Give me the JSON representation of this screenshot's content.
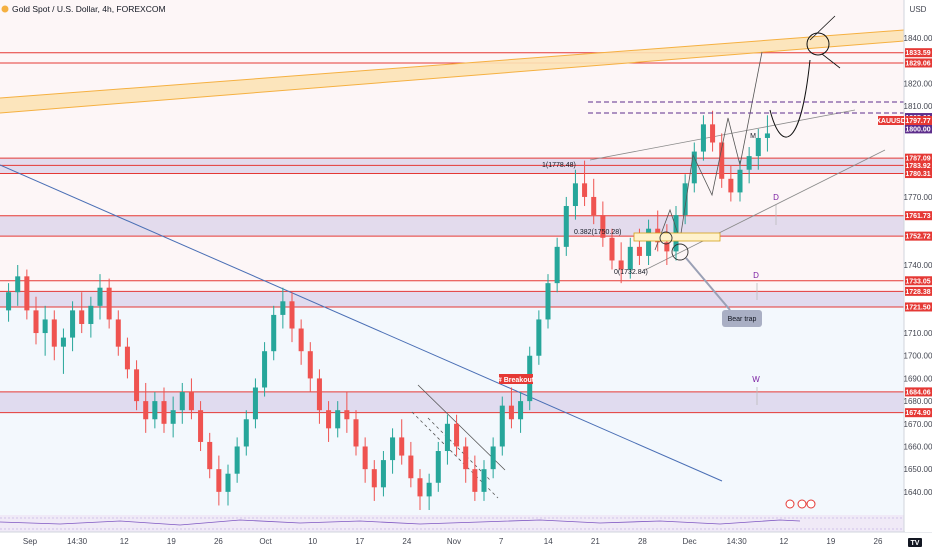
{
  "header": {
    "title": "Gold Spot / U.S. Dollar, 4h, FOREXCOM",
    "currency": "USD"
  },
  "chart_data": {
    "type": "candlestick",
    "title": "Gold Spot / U.S. Dollar, 4h, FOREXCOM",
    "ylabel": "USD",
    "ylim": [
      1632,
      1848
    ],
    "y_ticks": [
      1640,
      1650,
      1660,
      1670,
      1680,
      1690,
      1700,
      1710,
      1720,
      1730,
      1740,
      1750,
      1760,
      1770,
      1780,
      1790,
      1800,
      1810,
      1820,
      1840
    ],
    "x_ticks": [
      "Sep",
      "14:30",
      "12",
      "19",
      "26",
      "Oct",
      "10",
      "17",
      "24",
      "Nov",
      "7",
      "14",
      "21",
      "28",
      "Dec",
      "14:30",
      "12",
      "19",
      "26"
    ],
    "current_price": {
      "symbol": "XAUUSD",
      "value": "1797.77"
    },
    "levels": [
      {
        "value": 1833.59,
        "label": "1833.59",
        "color": "#e53935"
      },
      {
        "value": 1829.06,
        "label": "1829.06",
        "color": "#e53935"
      },
      {
        "value": 1805.0,
        "label": "1805.00",
        "color": "#5d2e8c"
      },
      {
        "value": 1800.0,
        "label": "1800.00",
        "color": "#5d2e8c"
      },
      {
        "value": 1787.09,
        "label": "1787.09",
        "color": "#e53935"
      },
      {
        "value": 1783.92,
        "label": "1783.92",
        "color": "#e53935"
      },
      {
        "value": 1780.31,
        "label": "1780.31",
        "color": "#e53935"
      },
      {
        "value": 1761.73,
        "label": "1761.73",
        "color": "#e53935"
      },
      {
        "value": 1752.72,
        "label": "1752.72",
        "color": "#e53935"
      },
      {
        "value": 1733.05,
        "label": "1733.05",
        "color": "#e53935"
      },
      {
        "value": 1728.38,
        "label": "1728.38",
        "color": "#e53935"
      },
      {
        "value": 1721.5,
        "label": "1721.50",
        "color": "#e53935"
      },
      {
        "value": 1684.06,
        "label": "1684.06",
        "color": "#e53935"
      },
      {
        "value": 1674.9,
        "label": "1674.90",
        "color": "#e53935"
      }
    ],
    "zones": [
      {
        "from": 1780.31,
        "to": 1787.09
      },
      {
        "from": 1752.72,
        "to": 1761.73
      },
      {
        "from": 1721.5,
        "to": 1728.38
      },
      {
        "from": 1674.9,
        "to": 1684.06
      }
    ],
    "annotations": {
      "fib_1": "1(1778.48)",
      "fib_382": "0.382(1750.28)",
      "fib_0": "0(1732.84)",
      "breakout": "# Breakout",
      "bear_trap": "Bear trap",
      "tf_d1": "D",
      "tf_d2": "D",
      "tf_w": "W",
      "pattern_m": "M"
    },
    "candles": [
      [
        1720,
        1732,
        1715,
        1728
      ],
      [
        1728,
        1740,
        1722,
        1735
      ],
      [
        1735,
        1738,
        1716,
        1720
      ],
      [
        1720,
        1726,
        1705,
        1710
      ],
      [
        1710,
        1722,
        1700,
        1716
      ],
      [
        1716,
        1720,
        1698,
        1704
      ],
      [
        1704,
        1712,
        1692,
        1708
      ],
      [
        1708,
        1724,
        1702,
        1720
      ],
      [
        1720,
        1728,
        1710,
        1714
      ],
      [
        1714,
        1726,
        1708,
        1722
      ],
      [
        1722,
        1736,
        1716,
        1730
      ],
      [
        1730,
        1734,
        1712,
        1716
      ],
      [
        1716,
        1720,
        1700,
        1704
      ],
      [
        1704,
        1708,
        1690,
        1694
      ],
      [
        1694,
        1698,
        1676,
        1680
      ],
      [
        1680,
        1688,
        1666,
        1672
      ],
      [
        1672,
        1684,
        1668,
        1680
      ],
      [
        1680,
        1686,
        1666,
        1670
      ],
      [
        1670,
        1682,
        1664,
        1676
      ],
      [
        1676,
        1688,
        1670,
        1684
      ],
      [
        1684,
        1690,
        1672,
        1676
      ],
      [
        1676,
        1680,
        1658,
        1662
      ],
      [
        1662,
        1666,
        1646,
        1650
      ],
      [
        1650,
        1656,
        1634,
        1640
      ],
      [
        1640,
        1652,
        1634,
        1648
      ],
      [
        1648,
        1664,
        1644,
        1660
      ],
      [
        1660,
        1676,
        1656,
        1672
      ],
      [
        1672,
        1690,
        1668,
        1686
      ],
      [
        1686,
        1706,
        1682,
        1702
      ],
      [
        1702,
        1722,
        1698,
        1718
      ],
      [
        1718,
        1730,
        1712,
        1724
      ],
      [
        1724,
        1728,
        1706,
        1712
      ],
      [
        1712,
        1716,
        1696,
        1702
      ],
      [
        1702,
        1706,
        1684,
        1690
      ],
      [
        1690,
        1694,
        1670,
        1676
      ],
      [
        1676,
        1680,
        1662,
        1668
      ],
      [
        1668,
        1680,
        1664,
        1676
      ],
      [
        1676,
        1684,
        1666,
        1672
      ],
      [
        1672,
        1676,
        1656,
        1660
      ],
      [
        1660,
        1664,
        1644,
        1650
      ],
      [
        1650,
        1654,
        1636,
        1642
      ],
      [
        1642,
        1658,
        1638,
        1654
      ],
      [
        1654,
        1668,
        1648,
        1664
      ],
      [
        1664,
        1672,
        1652,
        1656
      ],
      [
        1656,
        1662,
        1642,
        1646
      ],
      [
        1646,
        1650,
        1632,
        1638
      ],
      [
        1638,
        1648,
        1632,
        1644
      ],
      [
        1644,
        1662,
        1640,
        1658
      ],
      [
        1658,
        1674,
        1652,
        1670
      ],
      [
        1670,
        1674,
        1656,
        1660
      ],
      [
        1660,
        1664,
        1644,
        1650
      ],
      [
        1650,
        1656,
        1636,
        1640
      ],
      [
        1640,
        1654,
        1636,
        1650
      ],
      [
        1650,
        1664,
        1646,
        1660
      ],
      [
        1660,
        1682,
        1656,
        1678
      ],
      [
        1678,
        1686,
        1668,
        1672
      ],
      [
        1672,
        1684,
        1666,
        1680
      ],
      [
        1680,
        1704,
        1676,
        1700
      ],
      [
        1700,
        1720,
        1696,
        1716
      ],
      [
        1716,
        1736,
        1712,
        1732
      ],
      [
        1732,
        1752,
        1728,
        1748
      ],
      [
        1748,
        1770,
        1744,
        1766
      ],
      [
        1766,
        1782,
        1760,
        1776
      ],
      [
        1776,
        1786,
        1766,
        1770
      ],
      [
        1770,
        1778,
        1758,
        1762
      ],
      [
        1762,
        1768,
        1748,
        1752
      ],
      [
        1752,
        1756,
        1738,
        1742
      ],
      [
        1742,
        1750,
        1732,
        1738
      ],
      [
        1738,
        1752,
        1734,
        1748
      ],
      [
        1748,
        1756,
        1740,
        1744
      ],
      [
        1744,
        1760,
        1740,
        1756
      ],
      [
        1756,
        1764,
        1746,
        1750
      ],
      [
        1750,
        1758,
        1740,
        1746
      ],
      [
        1746,
        1766,
        1742,
        1762
      ],
      [
        1762,
        1780,
        1758,
        1776
      ],
      [
        1776,
        1794,
        1772,
        1790
      ],
      [
        1790,
        1806,
        1786,
        1802
      ],
      [
        1802,
        1808,
        1790,
        1794
      ],
      [
        1794,
        1798,
        1774,
        1778
      ],
      [
        1778,
        1784,
        1768,
        1772
      ],
      [
        1772,
        1786,
        1768,
        1782
      ],
      [
        1782,
        1792,
        1776,
        1788
      ],
      [
        1788,
        1800,
        1782,
        1796
      ],
      [
        1796,
        1806,
        1790,
        1798
      ]
    ]
  }
}
